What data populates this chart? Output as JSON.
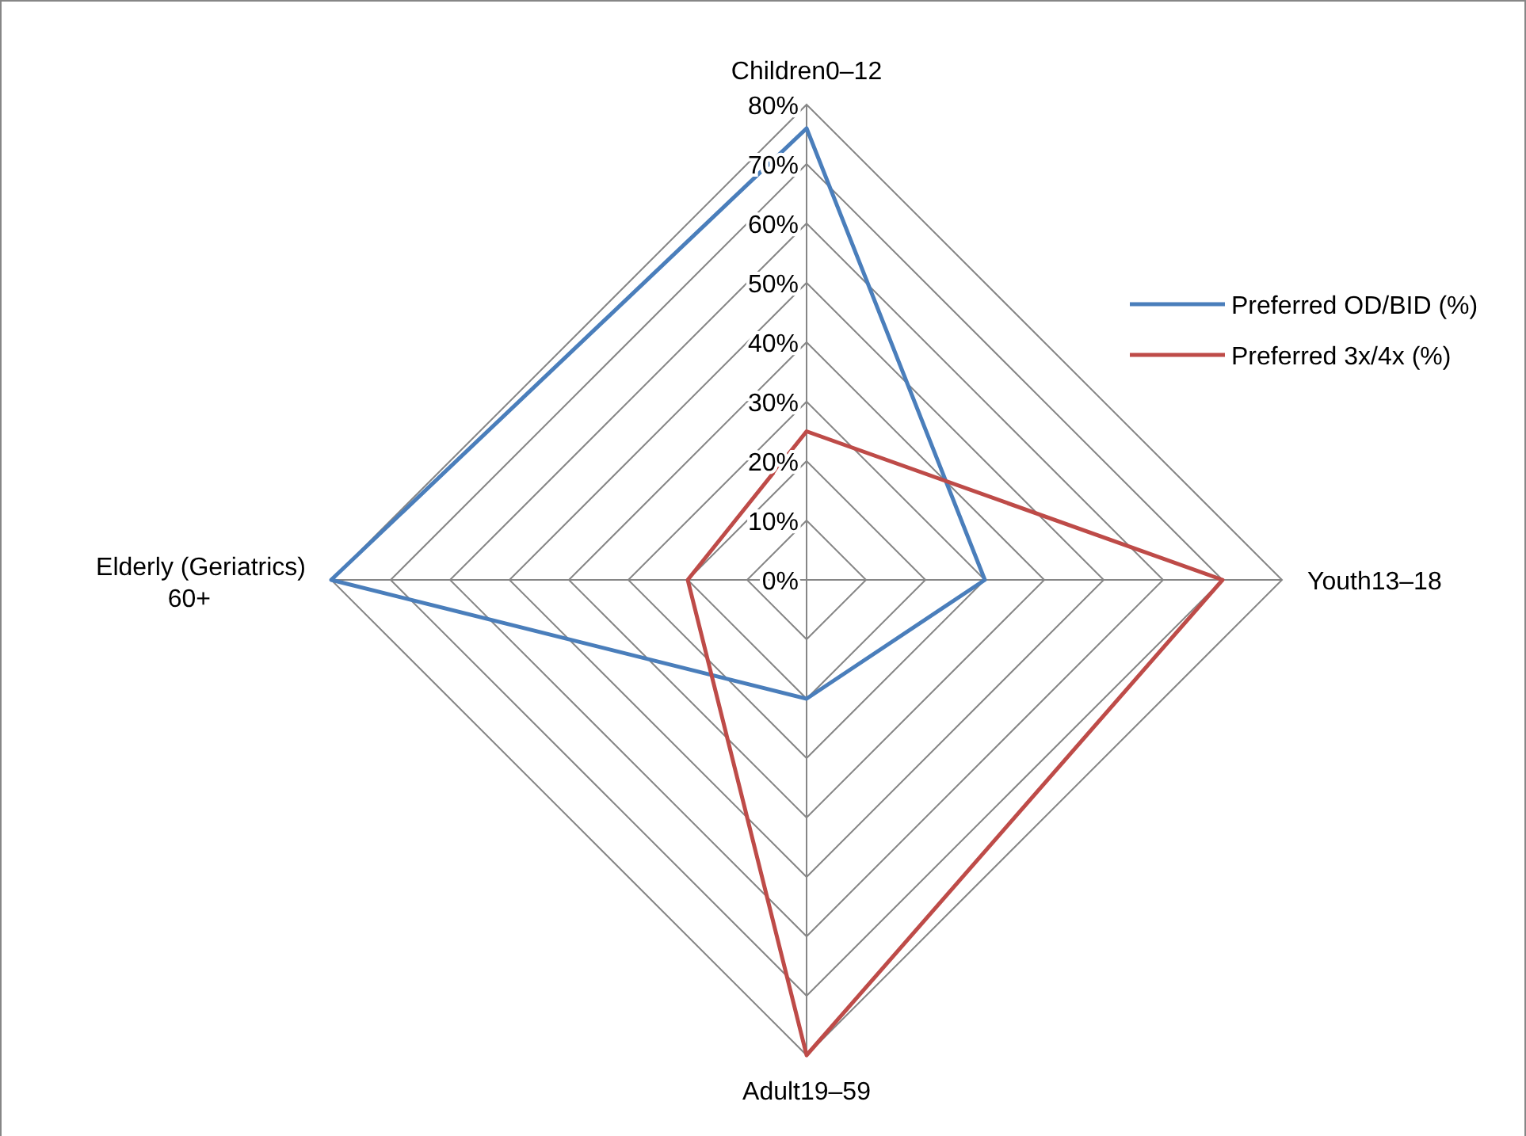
{
  "chart_data": {
    "type": "radar",
    "categories": [
      "Children0–12",
      "Youth13–18",
      "Adult19–59",
      "Elderly (Geriatrics) 60+"
    ],
    "series": [
      {
        "name": "Preferred OD/BID (%)",
        "color": "#4a7ebb",
        "values": [
          76,
          30,
          20,
          80
        ]
      },
      {
        "name": "Preferred 3x/4x (%)",
        "color": "#be4b48",
        "values": [
          25,
          70,
          80,
          20
        ]
      }
    ],
    "ylim": [
      0,
      80
    ],
    "yticks": [
      {
        "value": 0,
        "label": "0%"
      },
      {
        "value": 10,
        "label": "10%"
      },
      {
        "value": 20,
        "label": "20%"
      },
      {
        "value": 30,
        "label": "30%"
      },
      {
        "value": 40,
        "label": "40%"
      },
      {
        "value": 50,
        "label": "50%"
      },
      {
        "value": 60,
        "label": "60%"
      },
      {
        "value": 70,
        "label": "70%"
      },
      {
        "value": 80,
        "label": "80%"
      }
    ],
    "grid": true,
    "legend": "right"
  }
}
